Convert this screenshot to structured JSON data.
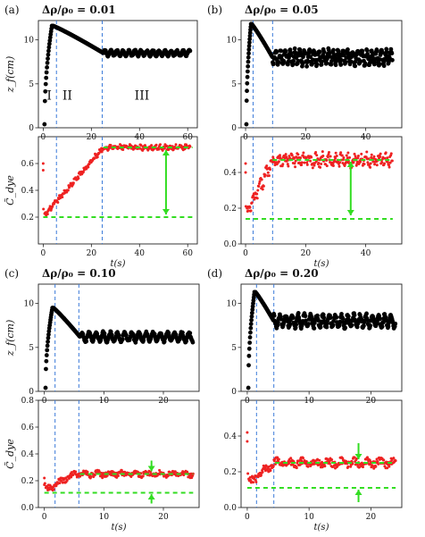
{
  "figure_title": "",
  "chart_data": [
    {
      "id": "a_top",
      "panel_label": "(a)",
      "title": "Δρ/ρ₀ = 0.01",
      "type": "scatter",
      "xlabel": "",
      "ylabel": "z_f(cm)",
      "xlim": [
        -2,
        64
      ],
      "ylim": [
        0,
        12.2
      ],
      "xticks": [
        0,
        20,
        40,
        60
      ],
      "yticks": [
        0,
        5,
        10
      ],
      "vlines": [
        5.5,
        24.5
      ],
      "region_labels": [
        {
          "text": "I",
          "x": 2.5,
          "y": 3.2
        },
        {
          "text": "II",
          "x": 10,
          "y": 3.2
        },
        {
          "text": "III",
          "x": 41,
          "y": 3.2
        }
      ],
      "series": [
        {
          "kind": "zf",
          "color": "#000000",
          "rise_end": 4,
          "peak": 11.6,
          "peak_t": 3.5,
          "plateau_t": 25,
          "plateau": 8.5,
          "t_end": 61,
          "osc_amp": 0.3,
          "osc_period": 2.5
        }
      ]
    },
    {
      "id": "a_bottom",
      "panel_label": "",
      "title": "",
      "type": "scatter",
      "xlabel": "t(s)",
      "ylabel": "C̃_dye",
      "xlim": [
        -2,
        64
      ],
      "ylim": [
        0,
        0.8
      ],
      "xticks": [
        0,
        20,
        40,
        60
      ],
      "yticks": [
        0.2,
        0.4,
        0.6
      ],
      "vlines": [
        5.5,
        24.5
      ],
      "hlines": [
        {
          "y": 0.2,
          "x0": 0,
          "x1": 62,
          "color": "#33dd22"
        },
        {
          "y": 0.72,
          "x0": 25,
          "x1": 62,
          "color": "#33dd22"
        }
      ],
      "arrows": [
        {
          "x": 51,
          "y0": 0.22,
          "y1": 0.7,
          "double": true,
          "color": "#33dd22"
        }
      ],
      "series": [
        {
          "kind": "c",
          "color": "#ee2222",
          "t_end": 61,
          "init_high": 0.6,
          "base": 0.2,
          "ramp_end": 25,
          "plateau": 0.72,
          "noise": 0.015
        }
      ]
    },
    {
      "id": "b_top",
      "panel_label": "(b)",
      "title": "Δρ/ρ₀ = 0.05",
      "type": "scatter",
      "xlabel": "",
      "ylabel": "",
      "xlim": [
        -1.5,
        52
      ],
      "ylim": [
        0,
        12.2
      ],
      "xticks": [
        0,
        20,
        40
      ],
      "yticks": [
        0,
        5,
        10
      ],
      "vlines": [
        2.5,
        9
      ],
      "series": [
        {
          "kind": "zf",
          "color": "#000000",
          "rise_end": 2,
          "peak": 11.8,
          "peak_t": 2.2,
          "plateau_t": 9,
          "plateau": 8.0,
          "t_end": 49,
          "osc_amp": 0.8,
          "osc_period": 1.6
        }
      ]
    },
    {
      "id": "b_bottom",
      "panel_label": "",
      "title": "",
      "type": "scatter",
      "xlabel": "t(s)",
      "ylabel": "",
      "xlim": [
        -1.5,
        52
      ],
      "ylim": [
        0,
        0.6
      ],
      "xticks": [
        0,
        20,
        40
      ],
      "yticks": [
        0.0,
        0.2,
        0.4
      ],
      "vlines": [
        2.5,
        9
      ],
      "hlines": [
        {
          "y": 0.14,
          "x0": 0,
          "x1": 49,
          "color": "#33dd22"
        },
        {
          "y": 0.47,
          "x0": 9,
          "x1": 49,
          "color": "#33dd22"
        }
      ],
      "arrows": [
        {
          "x": 35,
          "y0": 0.16,
          "y1": 0.46,
          "double": true,
          "color": "#33dd22"
        }
      ],
      "series": [
        {
          "kind": "c",
          "color": "#ee2222",
          "t_end": 49,
          "init_high": 0.45,
          "base": 0.15,
          "ramp_end": 9,
          "plateau": 0.47,
          "noise": 0.03
        }
      ]
    },
    {
      "id": "c_top",
      "panel_label": "(c)",
      "title": "Δρ/ρ₀ = 0.10",
      "type": "scatter",
      "xlabel": "",
      "ylabel": "z_f(cm)",
      "xlim": [
        -1,
        26
      ],
      "ylim": [
        0,
        12.2
      ],
      "xticks": [
        0,
        10,
        20
      ],
      "yticks": [
        0,
        5,
        10
      ],
      "vlines": [
        1.8,
        5.8
      ],
      "series": [
        {
          "kind": "zf",
          "color": "#000000",
          "rise_end": 1.5,
          "peak": 9.5,
          "peak_t": 1.8,
          "plateau_t": 6,
          "plateau": 6.2,
          "t_end": 25,
          "osc_amp": 0.5,
          "osc_period": 1.2
        }
      ]
    },
    {
      "id": "c_bottom",
      "panel_label": "",
      "title": "",
      "type": "scatter",
      "xlabel": "t(s)",
      "ylabel": "C̃_dye",
      "xlim": [
        -1,
        26
      ],
      "ylim": [
        0,
        0.8
      ],
      "xticks": [
        0,
        10,
        20
      ],
      "yticks": [
        0.0,
        0.2,
        0.4,
        0.6,
        0.8
      ],
      "vlines": [
        1.8,
        5.8
      ],
      "hlines": [
        {
          "y": 0.11,
          "x0": 0,
          "x1": 25,
          "color": "#33dd22"
        },
        {
          "y": 0.25,
          "x0": 6,
          "x1": 25,
          "color": "#33dd22"
        }
      ],
      "arrows": [
        {
          "x": 18,
          "y0": 0.35,
          "y1": 0.27,
          "double": false,
          "color": "#33dd22"
        },
        {
          "x": 18,
          "y0": 0.03,
          "y1": 0.1,
          "double": false,
          "color": "#33dd22"
        }
      ],
      "series": [
        {
          "kind": "c",
          "color": "#ee2222",
          "t_end": 25,
          "init_high": 0.22,
          "base": 0.12,
          "ramp_end": 5,
          "plateau": 0.25,
          "noise": 0.02
        }
      ]
    },
    {
      "id": "d_top",
      "panel_label": "(d)",
      "title": "Δρ/ρ₀ = 0.20",
      "type": "scatter",
      "xlabel": "",
      "ylabel": "",
      "xlim": [
        -1,
        25
      ],
      "ylim": [
        0,
        12.2
      ],
      "xticks": [
        0,
        10,
        20
      ],
      "yticks": [
        0,
        5,
        10
      ],
      "vlines": [
        1.5,
        4.3
      ],
      "series": [
        {
          "kind": "zf",
          "color": "#000000",
          "rise_end": 1.3,
          "peak": 11.3,
          "peak_t": 1.5,
          "plateau_t": 4.3,
          "plateau": 8.0,
          "t_end": 24,
          "osc_amp": 0.7,
          "osc_period": 1.0
        }
      ]
    },
    {
      "id": "d_bottom",
      "panel_label": "",
      "title": "",
      "type": "scatter",
      "xlabel": "t(s)",
      "ylabel": "",
      "xlim": [
        -1,
        25
      ],
      "ylim": [
        0,
        0.6
      ],
      "xticks": [
        0,
        10,
        20
      ],
      "yticks": [
        0.0,
        0.2,
        0.4
      ],
      "vlines": [
        1.5,
        4.3
      ],
      "hlines": [
        {
          "y": 0.11,
          "x0": 0,
          "x1": 24,
          "color": "#33dd22"
        },
        {
          "y": 0.25,
          "x0": 4.5,
          "x1": 24,
          "color": "#33dd22"
        }
      ],
      "arrows": [
        {
          "x": 18,
          "y0": 0.36,
          "y1": 0.27,
          "double": false,
          "color": "#33dd22"
        },
        {
          "x": 18,
          "y0": 0.03,
          "y1": 0.1,
          "double": false,
          "color": "#33dd22"
        }
      ],
      "series": [
        {
          "kind": "c",
          "color": "#ee2222",
          "t_end": 24,
          "init_high": 0.42,
          "base": 0.13,
          "ramp_end": 4.3,
          "plateau": 0.25,
          "noise": 0.02
        }
      ]
    }
  ]
}
